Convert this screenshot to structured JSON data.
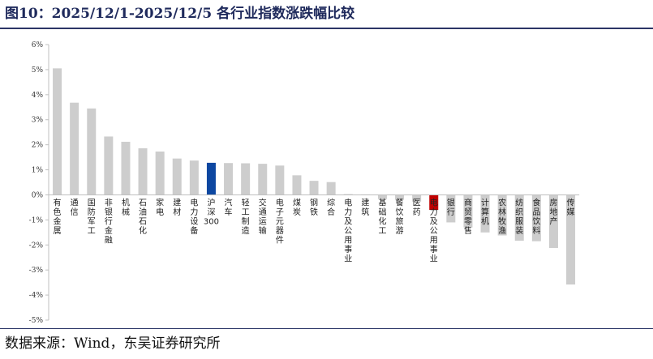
{
  "figure": {
    "title": "图10：2025/12/1-2025/12/5 各行业指数涨跌幅比较",
    "source": "数据来源：Wind，东吴证券研究所"
  },
  "colors": {
    "default_bar": "#cdcdcd",
    "benchmark_bar": "#0d47a1",
    "highlight_bar": "#c00000",
    "title": "#1f2a5c",
    "axis": "#bfbfbf"
  },
  "chart_data": {
    "type": "bar",
    "title": "",
    "xlabel": "",
    "ylabel": "",
    "ylim": [
      -5,
      6
    ],
    "yticks": [
      6,
      5,
      4,
      3,
      2,
      1,
      0,
      -1,
      -2,
      -3,
      -4,
      -5
    ],
    "ytick_suffix": "%",
    "grid": false,
    "legend": "none",
    "categories": [
      "有色金属",
      "通信",
      "国防军工",
      "非银行金融",
      "机械",
      "石油石化",
      "家电",
      "建材",
      "电力设备",
      "沪深300",
      "汽车",
      "轻工制造",
      "交通运输",
      "电子元器件",
      "煤炭",
      "钢铁",
      "综合",
      "电力及公用事业",
      "建筑",
      "基础化工",
      "餐饮旅游",
      "医药",
      "电力及公用事业",
      "银行",
      "商贸零售",
      "计算机",
      "农林牧渔",
      "纺织服装",
      "食品饮料",
      "房地产",
      "传媒"
    ],
    "label_lines": [
      [
        "有",
        "色",
        "金",
        "属"
      ],
      [
        "通",
        "信"
      ],
      [
        "国",
        "防",
        "军",
        "工"
      ],
      [
        "非",
        "银",
        "行",
        "金",
        "融"
      ],
      [
        "机",
        "械"
      ],
      [
        "石",
        "油",
        "石",
        "化"
      ],
      [
        "家",
        "电"
      ],
      [
        "建",
        "材"
      ],
      [
        "电",
        "力",
        "设",
        "备"
      ],
      [
        "沪",
        "深",
        "300"
      ],
      [
        "汽",
        "车"
      ],
      [
        "轻",
        "工",
        "制",
        "造"
      ],
      [
        "交",
        "通",
        "运",
        "输"
      ],
      [
        "电",
        "子",
        "元",
        "器",
        "件"
      ],
      [
        "煤",
        "炭"
      ],
      [
        "钢",
        "铁"
      ],
      [
        "综",
        "合"
      ],
      [
        "电",
        "力",
        "及",
        "公",
        "用",
        "事",
        "业"
      ],
      [
        "建",
        "筑"
      ],
      [
        "基",
        "础",
        "化",
        "工"
      ],
      [
        "餐",
        "饮",
        "旅",
        "游"
      ],
      [
        "医",
        "药"
      ],
      [
        "电",
        "力",
        "及",
        "公",
        "用",
        "事",
        "业"
      ],
      [
        "银",
        "行"
      ],
      [
        "商",
        "贸",
        "零",
        "售"
      ],
      [
        "计",
        "算",
        "机"
      ],
      [
        "农",
        "林",
        "牧",
        "渔"
      ],
      [
        "纺",
        "织",
        "服",
        "装"
      ],
      [
        "食",
        "品",
        "饮",
        "料"
      ],
      [
        "房",
        "地",
        "产"
      ],
      [
        "传",
        "媒"
      ]
    ],
    "values": [
      5.05,
      3.68,
      3.45,
      2.33,
      2.12,
      1.86,
      1.73,
      1.45,
      1.37,
      1.28,
      1.27,
      1.26,
      1.24,
      1.17,
      0.78,
      0.56,
      0.51,
      0.03,
      0.02,
      -0.17,
      -0.2,
      -0.27,
      -0.6,
      -1.1,
      -1.3,
      -1.5,
      -1.62,
      -1.83,
      -1.85,
      -2.12,
      -3.58
    ],
    "highlight": {
      "benchmark_index": 9,
      "red_index": 22
    }
  }
}
